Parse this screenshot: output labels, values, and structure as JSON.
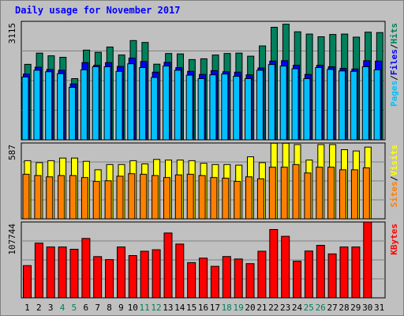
{
  "title": "Daily usage for November 2017",
  "colors": {
    "background": "#c0c0c0",
    "hits": "#00805c",
    "files": "#0000ff",
    "pages": "#00c0ff",
    "visits": "#ffff00",
    "sites": "#ff8000",
    "kbytes": "#ff0000",
    "title": "#0000ff",
    "weekend_label": "#00805c",
    "weekday_label": "#000000"
  },
  "chart_data": [
    {
      "type": "bar",
      "panel": "hits-files-pages",
      "ymax_label": "3115",
      "ylim": [
        0,
        3115
      ],
      "side_label": [
        "Pages",
        "/",
        "Files",
        "/",
        "Hits"
      ],
      "categories": [
        "1",
        "2",
        "3",
        "4",
        "5",
        "6",
        "7",
        "8",
        "9",
        "10",
        "11",
        "12",
        "13",
        "14",
        "15",
        "16",
        "17",
        "18",
        "19",
        "20",
        "21",
        "22",
        "23",
        "24",
        "25",
        "26",
        "27",
        "28",
        "29",
        "30",
        "31"
      ],
      "weekend_days": [
        "4",
        "5",
        "11",
        "12",
        "18",
        "19",
        "25",
        "26"
      ],
      "series": [
        {
          "name": "Hits",
          "values": [
            1985,
            2280,
            2210,
            2170,
            1610,
            2360,
            2300,
            2440,
            2230,
            2610,
            2560,
            1990,
            2270,
            2260,
            2110,
            2130,
            2230,
            2270,
            2280,
            2200,
            2470,
            2960,
            3040,
            2840,
            2780,
            2710,
            2770,
            2780,
            2700,
            2830,
            2820
          ]
        },
        {
          "name": "Files",
          "values": [
            1730,
            1910,
            1850,
            1830,
            1470,
            2030,
            1960,
            2030,
            1930,
            2150,
            2060,
            1780,
            2040,
            1900,
            1800,
            1720,
            1820,
            1790,
            1780,
            1710,
            1890,
            2070,
            2080,
            1960,
            1720,
            1960,
            1920,
            1880,
            1860,
            2080,
            2070
          ]
        },
        {
          "name": "Pages",
          "values": [
            1650,
            1830,
            1790,
            1740,
            1380,
            1840,
            1920,
            1920,
            1800,
            2000,
            1900,
            1640,
            1940,
            1830,
            1700,
            1610,
            1710,
            1730,
            1670,
            1610,
            1830,
            1980,
            1940,
            1870,
            1610,
            1900,
            1850,
            1810,
            1800,
            1920,
            1840
          ]
        }
      ]
    },
    {
      "type": "bar",
      "panel": "visits-sites",
      "ymax_label": "587",
      "ylim": [
        0,
        587
      ],
      "side_label": [
        "Sites",
        "/",
        "Visits"
      ],
      "categories": [
        "1",
        "2",
        "3",
        "4",
        "5",
        "6",
        "7",
        "8",
        "9",
        "10",
        "11",
        "12",
        "13",
        "14",
        "15",
        "16",
        "17",
        "18",
        "19",
        "20",
        "21",
        "22",
        "23",
        "24",
        "25",
        "26",
        "27",
        "28",
        "29",
        "30",
        "31"
      ],
      "series": [
        {
          "name": "Visits",
          "values": [
            450,
            435,
            450,
            470,
            470,
            445,
            380,
            420,
            420,
            450,
            425,
            460,
            455,
            455,
            450,
            430,
            420,
            420,
            415,
            480,
            435,
            585,
            585,
            575,
            455,
            575,
            575,
            535,
            525,
            555,
            0
          ]
        },
        {
          "name": "Sites",
          "values": [
            345,
            335,
            325,
            335,
            335,
            320,
            290,
            295,
            330,
            350,
            345,
            335,
            320,
            340,
            345,
            335,
            320,
            315,
            290,
            325,
            310,
            400,
            400,
            420,
            355,
            400,
            400,
            380,
            380,
            395,
            0
          ]
        }
      ]
    },
    {
      "type": "bar",
      "panel": "kbytes",
      "ymax_label": "107744",
      "ylim": [
        0,
        107744
      ],
      "side_label": [
        "KBytes"
      ],
      "categories": [
        "1",
        "2",
        "3",
        "4",
        "5",
        "6",
        "7",
        "8",
        "9",
        "10",
        "11",
        "12",
        "13",
        "14",
        "15",
        "16",
        "17",
        "18",
        "19",
        "20",
        "21",
        "22",
        "23",
        "24",
        "25",
        "26",
        "27",
        "28",
        "29",
        "30",
        "31"
      ],
      "series": [
        {
          "name": "KBytes",
          "values": [
            45800,
            77800,
            72300,
            72300,
            69000,
            84400,
            58600,
            54300,
            72300,
            60000,
            66200,
            68400,
            92100,
            76400,
            50000,
            56500,
            44800,
            58700,
            55200,
            48600,
            66200,
            97100,
            87400,
            52100,
            66600,
            74600,
            62400,
            72300,
            72300,
            107744,
            0
          ]
        }
      ]
    }
  ]
}
